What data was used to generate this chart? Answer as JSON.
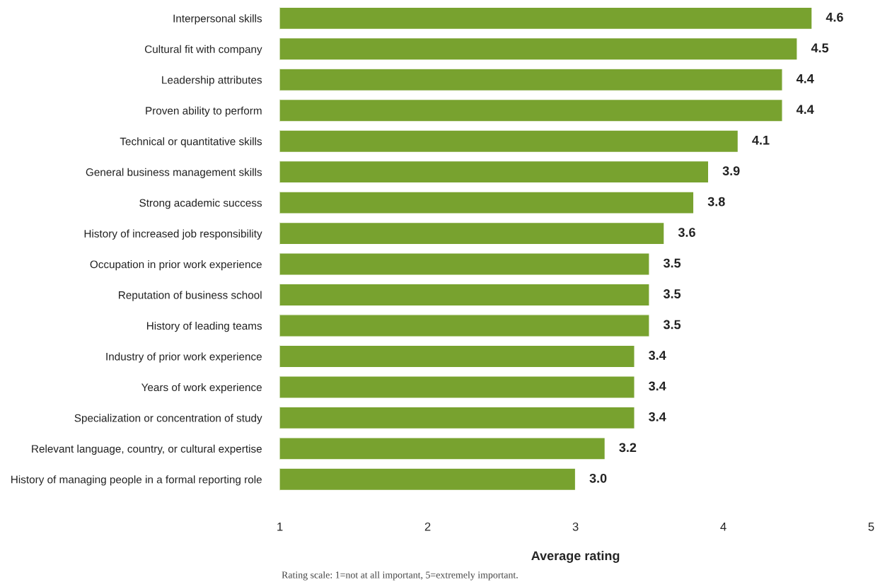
{
  "chart_data": {
    "type": "bar",
    "orientation": "horizontal",
    "xlabel": "Average rating",
    "categories": [
      "Interpersonal skills",
      "Cultural fit with company",
      "Leadership attributes",
      "Proven ability to perform",
      "Technical or quantitative skills",
      "General business management skills",
      "Strong academic success",
      "History of increased job responsibility",
      "Occupation in prior work experience",
      "Reputation of business school",
      "History of leading teams",
      "Industry of prior work experience",
      "Years of work experience",
      "Specialization or concentration of study",
      "Relevant language, country, or cultural expertise",
      "History of managing people in a formal reporting role"
    ],
    "values": [
      4.6,
      4.5,
      4.4,
      4.4,
      4.1,
      3.9,
      3.8,
      3.6,
      3.5,
      3.5,
      3.5,
      3.4,
      3.4,
      3.4,
      3.2,
      3.0
    ],
    "color": "#78a22f",
    "xlim": [
      1,
      5
    ],
    "xticks": [
      1,
      2,
      3,
      4,
      5
    ],
    "value_labels": [
      "4.6",
      "4.5",
      "4.4",
      "4.4",
      "4.1",
      "3.9",
      "3.8",
      "3.6",
      "3.5",
      "3.5",
      "3.5",
      "3.4",
      "3.4",
      "3.4",
      "3.2",
      "3.0"
    ],
    "annotations": [
      "Rating scale: 1=not at all important, 5=extremely important."
    ]
  }
}
